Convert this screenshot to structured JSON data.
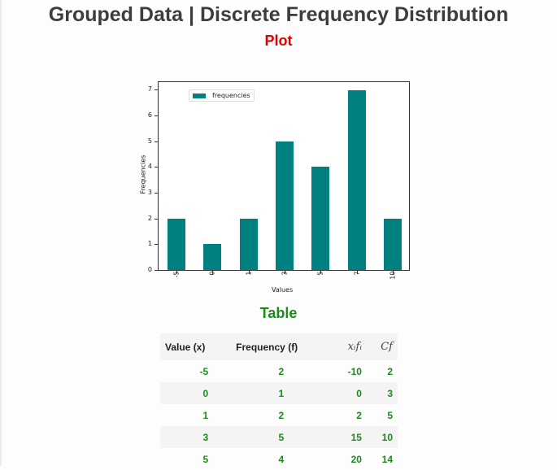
{
  "page": {
    "title": "Grouped Data | Discrete Frequency Distribution",
    "plot_heading": "Plot",
    "table_heading": "Table"
  },
  "colors": {
    "bar": "#008080",
    "plot_heading": "#e00000",
    "table_text": "#1a8a1a"
  },
  "chart_data": {
    "type": "bar",
    "categories": [
      "-5",
      "0",
      "1",
      "3",
      "5",
      "7",
      "10"
    ],
    "values": [
      2,
      1,
      2,
      5,
      4,
      7,
      2
    ],
    "series": [
      {
        "name": "frequencies",
        "values": [
          2,
          1,
          2,
          5,
          4,
          7,
          2
        ]
      }
    ],
    "title": "",
    "xlabel": "Values",
    "ylabel": "Frequencies",
    "ylim": [
      0,
      7.3
    ],
    "yticks": [
      "0",
      "1",
      "2",
      "3",
      "4",
      "5",
      "6",
      "7"
    ],
    "legend": {
      "entries": [
        "frequencies"
      ],
      "position": "upper left"
    },
    "grid": false
  },
  "table": {
    "headers": [
      "Value (x)",
      "Frequency (f)",
      "x_i f_i",
      "Cf"
    ],
    "header_display": {
      "xf": "xᵢfᵢ",
      "cf": "Cf"
    },
    "rows": [
      [
        "-5",
        "2",
        "-10",
        "2"
      ],
      [
        "0",
        "1",
        "0",
        "3"
      ],
      [
        "1",
        "2",
        "2",
        "5"
      ],
      [
        "3",
        "5",
        "15",
        "10"
      ],
      [
        "5",
        "4",
        "20",
        "14"
      ]
    ]
  }
}
